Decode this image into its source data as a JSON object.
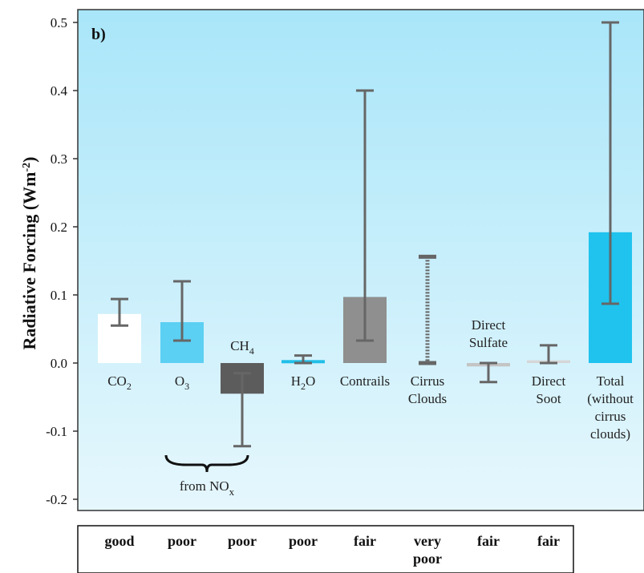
{
  "chart_data": {
    "type": "bar",
    "panel_label": "b)",
    "ylabel": "Radiative Forcing (Wm-2)",
    "ylim": [
      -0.22,
      0.52
    ],
    "yticks": [
      "-0.2",
      "-0.1",
      "0.0",
      "0.1",
      "0.2",
      "0.3",
      "0.4",
      "0.5"
    ],
    "ytick_values": [
      -0.2,
      -0.1,
      0.0,
      0.1,
      0.2,
      0.3,
      0.4,
      0.5
    ],
    "grid": false,
    "categories": [
      "CO2",
      "O3",
      "CH4",
      "H2O",
      "Contrails",
      "Cirrus Clouds",
      "Direct Sulfate",
      "Direct Soot",
      "Total (without cirrus clouds)"
    ],
    "category_labels": [
      [
        "CO",
        "2",
        ""
      ],
      [
        "O",
        "3",
        ""
      ],
      [
        "CH",
        "4",
        ""
      ],
      [
        "H",
        "2",
        "O"
      ],
      [
        "Contrails"
      ],
      [
        "Cirrus",
        "Clouds"
      ],
      [
        "Direct",
        "Sulfate"
      ],
      [
        "Direct",
        "Soot"
      ],
      [
        "Total",
        "(without",
        "cirrus",
        "clouds)"
      ]
    ],
    "values": [
      0.072,
      0.06,
      -0.045,
      0.002,
      0.097,
      null,
      -0.005,
      0.004,
      0.192
    ],
    "error_low": [
      0.055,
      0.033,
      -0.122,
      0.0,
      0.033,
      0.0,
      -0.028,
      0.0,
      0.087
    ],
    "error_high": [
      0.094,
      0.12,
      -0.015,
      0.011,
      0.4,
      0.156,
      0.0,
      0.026,
      0.5
    ],
    "bar_colors": [
      "#ffffff",
      "#5bd0f3",
      "#5c5c5c",
      "#22bfe8",
      "#8f8f8f",
      "#8f8f8f",
      "#c4c4c4",
      "#d6d6d6",
      "#1fc3ee"
    ],
    "error_bar_color": "#666666",
    "group_annotation": {
      "text": "from NO",
      "subscript": "x",
      "categories": [
        "O3",
        "CH4"
      ]
    },
    "confidence": [
      "good",
      "poor",
      "poor",
      "poor",
      "fair",
      "very poor",
      "fair",
      "fair"
    ]
  }
}
